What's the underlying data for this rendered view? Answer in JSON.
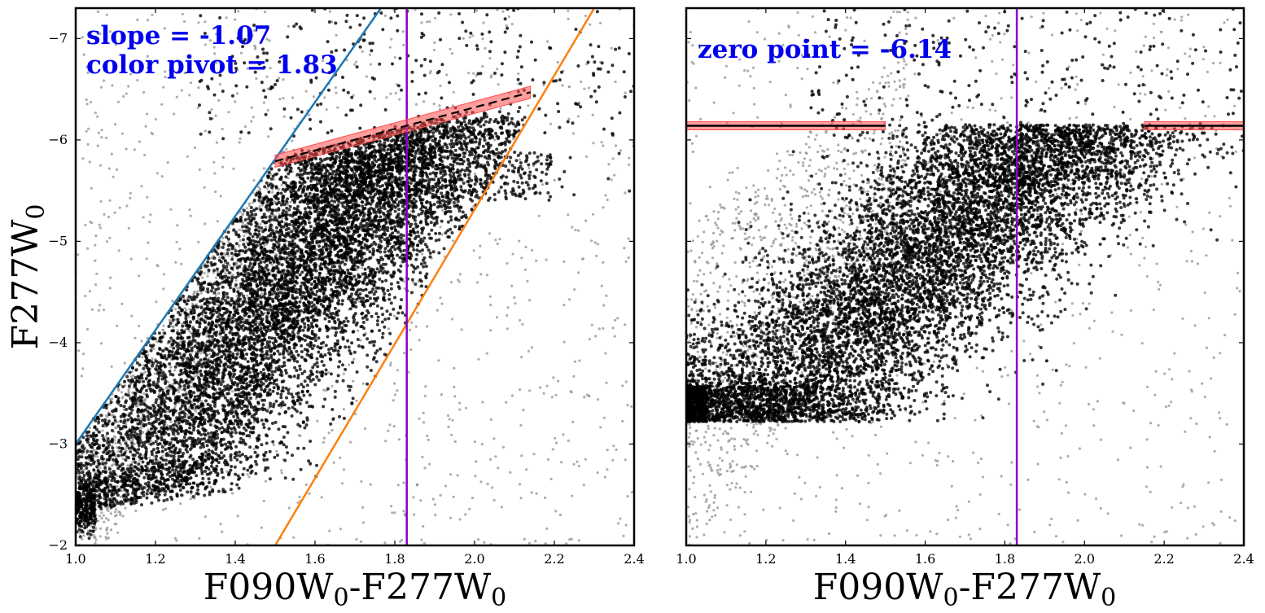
{
  "chart_data": [
    {
      "type": "scatter",
      "panel": "left",
      "xlabel": "F090W0-F277W0",
      "ylabel": "F277W0",
      "xlim": [
        1.0,
        2.4
      ],
      "ylim": [
        -2.0,
        -7.3
      ],
      "y_inverted": true,
      "xticks": [
        "1.0",
        "1.2",
        "1.4",
        "1.6",
        "1.8",
        "2.0",
        "2.2",
        "2.4"
      ],
      "yticks": [
        "−7",
        "−6",
        "−5",
        "−4",
        "−3",
        "−2"
      ],
      "annotations": [
        "slope = -1.07",
        "color pivot = 1.83"
      ],
      "annotation_color": "#0000ee",
      "lines": [
        {
          "name": "blue boundary",
          "color": "#1f77b4",
          "x": [
            1.0,
            1.765
          ],
          "y": [
            -3.0,
            -7.3
          ]
        },
        {
          "name": "orange boundary",
          "color": "#ff7f0e",
          "x": [
            1.5,
            2.3
          ],
          "y": [
            -2.0,
            -7.3
          ]
        },
        {
          "name": "color pivot",
          "color": "#8a00c8",
          "x": [
            1.83,
            1.83
          ],
          "y": [
            -2.0,
            -7.3
          ]
        },
        {
          "name": "TRGB fit",
          "color": "#000000",
          "style": "dashed",
          "x": [
            1.5,
            2.14
          ],
          "y": [
            -5.79,
            -6.47
          ],
          "band_color": "#ff4d4d",
          "band_halfwidth": 0.06
        }
      ],
      "series": [
        {
          "name": "selected stars",
          "color": "#000000",
          "count": 9000
        },
        {
          "name": "rejected stars",
          "color": "#999999",
          "count": 2200
        }
      ]
    },
    {
      "type": "scatter",
      "panel": "right",
      "xlabel": "F090W0-F277W0",
      "ylabel": "",
      "xlim": [
        1.0,
        2.4
      ],
      "ylim": [
        -2.0,
        -7.3
      ],
      "y_inverted": true,
      "xticks": [
        "1.0",
        "1.2",
        "1.4",
        "1.6",
        "1.8",
        "2.0",
        "2.2",
        "2.4"
      ],
      "annotations": [
        "zero point = -6.14"
      ],
      "annotation_color": "#0000ee",
      "lines": [
        {
          "name": "color pivot",
          "color": "#8a00c8",
          "x": [
            1.83,
            1.83
          ],
          "y": [
            -2.0,
            -7.3
          ]
        },
        {
          "name": "zero point left",
          "color": "#000000",
          "x": [
            1.0,
            1.5
          ],
          "y": [
            -6.14,
            -6.14
          ],
          "band_color": "#ff4d4d"
        },
        {
          "name": "zero point right",
          "color": "#000000",
          "x": [
            2.15,
            2.4
          ],
          "y": [
            -6.14,
            -6.14
          ],
          "band_color": "#ff4d4d"
        }
      ],
      "series": [
        {
          "name": "selected stars (slope-corrected)",
          "color": "#000000",
          "count": 9000
        },
        {
          "name": "rejected stars",
          "color": "#999999",
          "count": 1800
        }
      ]
    }
  ]
}
